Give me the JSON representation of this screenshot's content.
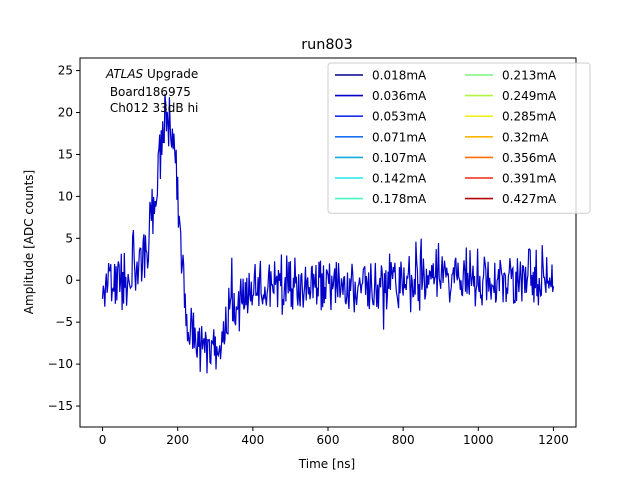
{
  "chart_data": {
    "type": "line",
    "title": "run803",
    "xlabel": "Time [ns]",
    "ylabel": "Amplitude [ADC counts]",
    "xlim": [
      -60,
      1260
    ],
    "ylim": [
      -17.5,
      26.5
    ],
    "xticks": [
      0,
      200,
      400,
      600,
      800,
      1000,
      1200
    ],
    "yticks": [
      -15,
      -10,
      -5,
      0,
      5,
      10,
      15,
      20,
      25
    ],
    "grid": false,
    "legend_position": "top-right",
    "legend_columns": 2,
    "annotation": {
      "italic_part": "ATLAS",
      "line1_rest": " Upgrade",
      "line2": " Board186975",
      "line3": " Ch012 33dB hi"
    },
    "series": [
      {
        "name": "0.018mA",
        "color": "#00008b"
      },
      {
        "name": "0.036mA",
        "color": "#0000c8"
      },
      {
        "name": "0.053mA",
        "color": "#1a2ee6"
      },
      {
        "name": "0.071mA",
        "color": "#1a6ef0"
      },
      {
        "name": "0.107mA",
        "color": "#13a8e0"
      },
      {
        "name": "0.142mA",
        "color": "#1ee8e8"
      },
      {
        "name": "0.178mA",
        "color": "#4af5c0"
      },
      {
        "name": "0.213mA",
        "color": "#7cf57c"
      },
      {
        "name": "0.249mA",
        "color": "#b4f542"
      },
      {
        "name": "0.285mA",
        "color": "#f0f01e"
      },
      {
        "name": "0.32mA",
        "color": "#ffb400"
      },
      {
        "name": "0.356mA",
        "color": "#ff6e0a"
      },
      {
        "name": "0.391mA",
        "color": "#f02814"
      },
      {
        "name": "0.427mA",
        "color": "#b4000a"
      }
    ],
    "trace": {
      "color": "#0000c8",
      "x_range": [
        0,
        1200
      ],
      "x_step": 2,
      "profile": [
        [
          0,
          0
        ],
        [
          60,
          0
        ],
        [
          120,
          4
        ],
        [
          150,
          14
        ],
        [
          170,
          20
        ],
        [
          190,
          17
        ],
        [
          205,
          6
        ],
        [
          225,
          -5
        ],
        [
          255,
          -8
        ],
        [
          300,
          -8
        ],
        [
          350,
          -3
        ],
        [
          400,
          -1
        ],
        [
          500,
          -0.5
        ],
        [
          700,
          -0.5
        ],
        [
          900,
          0.3
        ],
        [
          1200,
          0
        ]
      ]
    }
  }
}
